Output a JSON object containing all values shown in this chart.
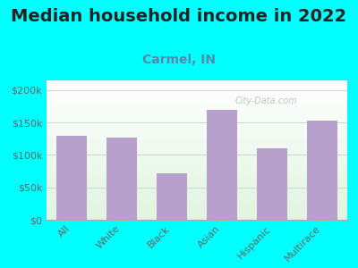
{
  "title": "Median household income in 2022",
  "subtitle": "Carmel, IN",
  "categories": [
    "All",
    "White",
    "Black",
    "Asian",
    "Hispanic",
    "Multirace"
  ],
  "values": [
    130000,
    127000,
    72000,
    170000,
    110000,
    153000
  ],
  "bar_color": "#b8a0cc",
  "background_outer": "#00FFFF",
  "yticks": [
    0,
    50000,
    100000,
    150000,
    200000
  ],
  "ytick_labels": [
    "$0",
    "$50k",
    "$100k",
    "$150k",
    "$200k"
  ],
  "ylim": [
    0,
    215000
  ],
  "watermark": "City-Data.com",
  "title_fontsize": 14,
  "subtitle_fontsize": 10,
  "title_color": "#222222",
  "subtitle_color": "#5588aa",
  "tick_color": "#666666",
  "tick_fontsize": 8,
  "xtick_fontsize": 8
}
